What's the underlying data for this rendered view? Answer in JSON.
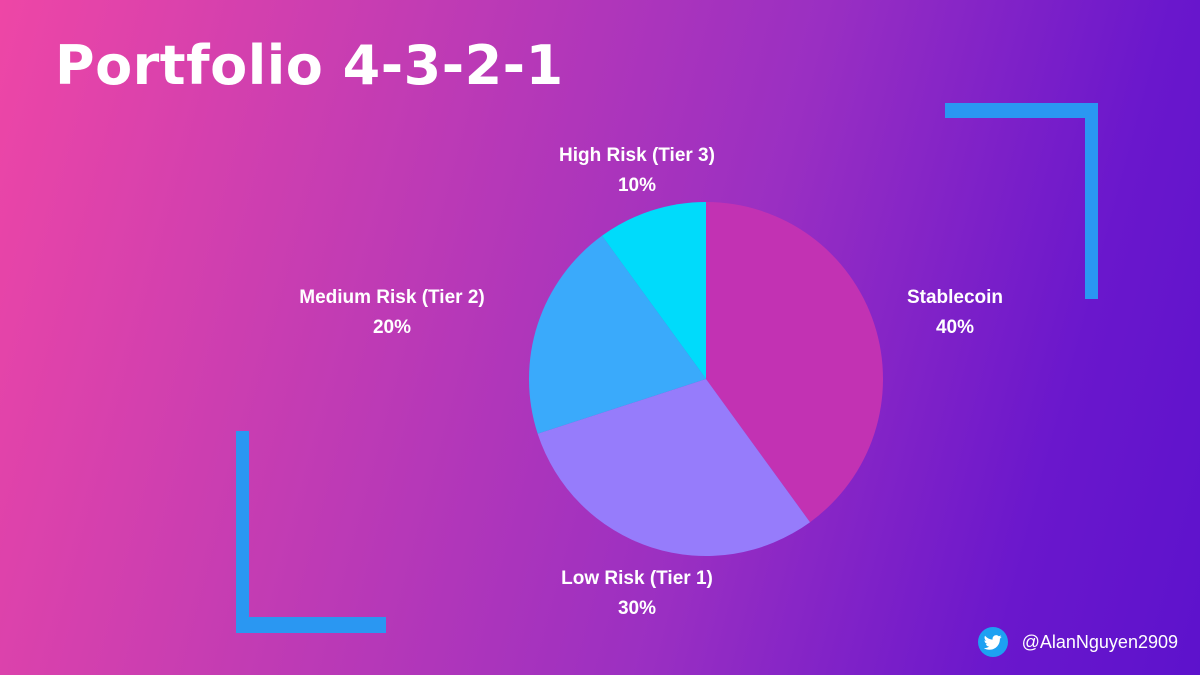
{
  "title": "Portfolio 4-3-2-1",
  "footer": {
    "handle": "@AlanNguyen2909",
    "icon": "twitter-icon"
  },
  "colors": {
    "background_start": "#ee46a6",
    "background_end": "#5d12cc",
    "bracket": "#2a97f2",
    "twitter": "#1da1f2"
  },
  "chart_data": {
    "type": "pie",
    "title": "Portfolio 4-3-2-1",
    "start_angle_deg": 0,
    "direction": "clockwise",
    "slices": [
      {
        "label": "Stablecoin",
        "value": 40,
        "value_label": "40%",
        "color": "#c232b3"
      },
      {
        "label": "Low Risk (Tier 1)",
        "value": 30,
        "value_label": "30%",
        "color": "#967cfb"
      },
      {
        "label": "Medium Risk (Tier 2)",
        "value": 20,
        "value_label": "20%",
        "color": "#3aaafb"
      },
      {
        "label": "High Risk (Tier 3)",
        "value": 10,
        "value_label": "10%",
        "color": "#00dbfb"
      }
    ]
  }
}
